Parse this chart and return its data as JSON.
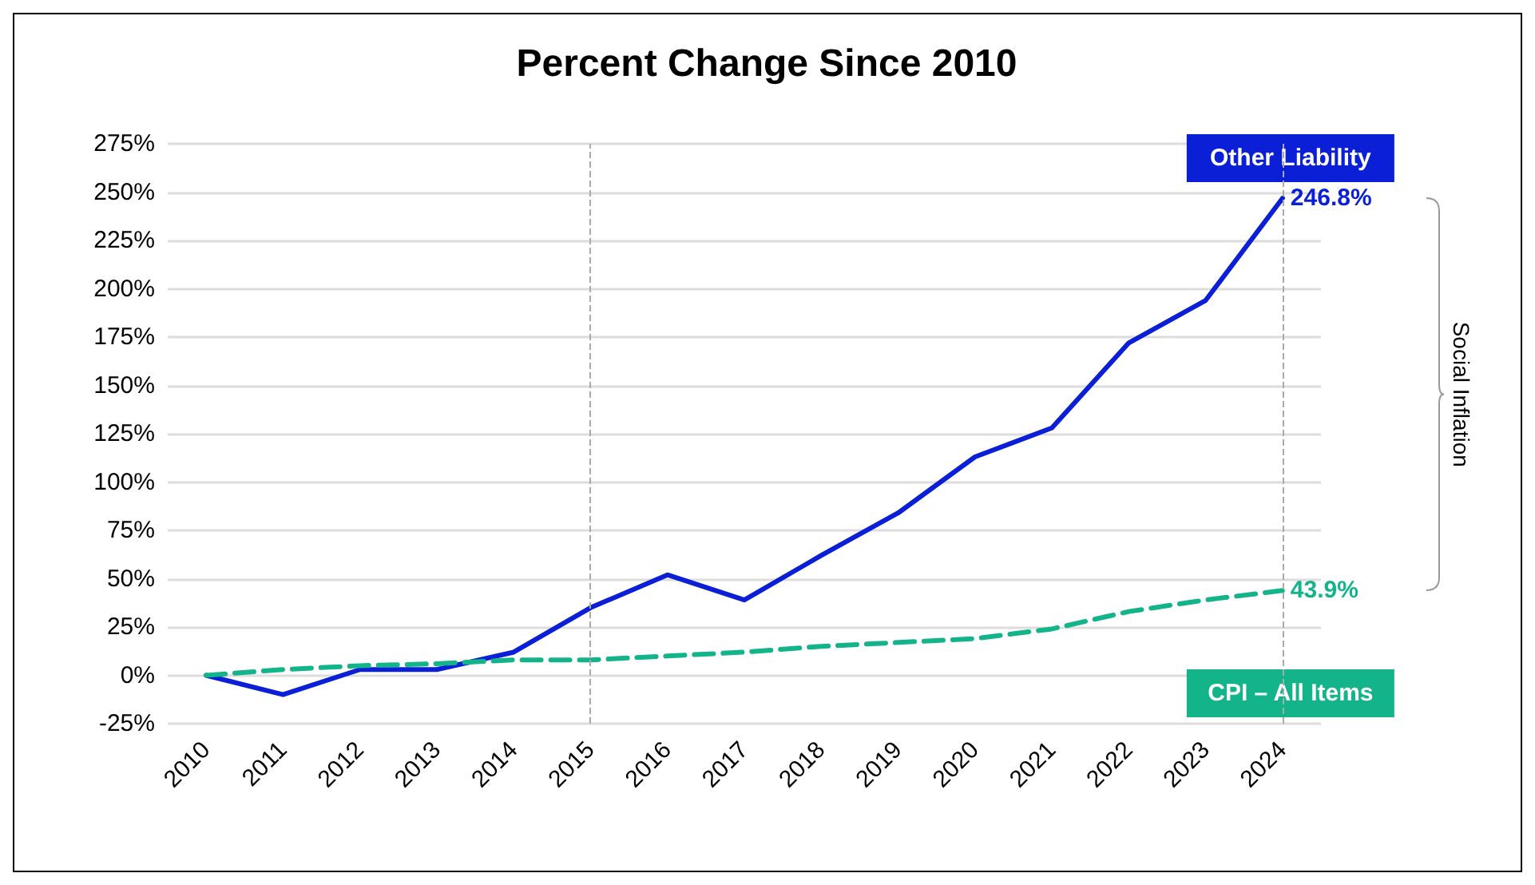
{
  "chart_data": {
    "type": "line",
    "title": "Percent Change Since 2010",
    "categories": [
      "2010",
      "2011",
      "2012",
      "2013",
      "2014",
      "2015",
      "2016",
      "2017",
      "2018",
      "2019",
      "2020",
      "2021",
      "2022",
      "2023",
      "2024"
    ],
    "series": [
      {
        "name": "Other Liability",
        "color": "#0a1fd6",
        "line_style": "solid",
        "values": [
          0,
          -10,
          3,
          3,
          12,
          35,
          52,
          39,
          62,
          84,
          113,
          128,
          172,
          194,
          246.8
        ],
        "value_labels": [
          null,
          null,
          null,
          null,
          null,
          null,
          null,
          null,
          null,
          null,
          null,
          null,
          null,
          null,
          "246.8%"
        ]
      },
      {
        "name": "CPI – All Items",
        "color": "#14b48a",
        "line_style": "dashed",
        "values": [
          0,
          3,
          5,
          6,
          8,
          8,
          10,
          12,
          15,
          17,
          19,
          24,
          33,
          39,
          43.9
        ],
        "value_labels": [
          null,
          null,
          null,
          null,
          null,
          null,
          null,
          null,
          null,
          null,
          null,
          null,
          null,
          null,
          "43.9%"
        ]
      }
    ],
    "ylim": [
      -25,
      275
    ],
    "yticks": [
      {
        "value": -25,
        "label": "-25%"
      },
      {
        "value": 0,
        "label": "0%"
      },
      {
        "value": 25,
        "label": "25%"
      },
      {
        "value": 50,
        "label": "50%"
      },
      {
        "value": 75,
        "label": "75%"
      },
      {
        "value": 100,
        "label": "100%"
      },
      {
        "value": 125,
        "label": "125%"
      },
      {
        "value": 150,
        "label": "150%"
      },
      {
        "value": 175,
        "label": "175%"
      },
      {
        "value": 200,
        "label": "200%"
      },
      {
        "value": 225,
        "label": "225%"
      },
      {
        "value": 250,
        "label": "250%"
      },
      {
        "value": 275,
        "label": "275%"
      }
    ],
    "ref_lines": [
      {
        "axis": "x",
        "value": "2015",
        "color": "#aaaaaa",
        "line_style": "dashed"
      },
      {
        "axis": "x",
        "value": "2024",
        "color": "#aaaaaa",
        "line_style": "dashed"
      }
    ],
    "annotations": [
      "Social Inflation"
    ],
    "grid": "y",
    "legend": false,
    "marker": "none"
  }
}
